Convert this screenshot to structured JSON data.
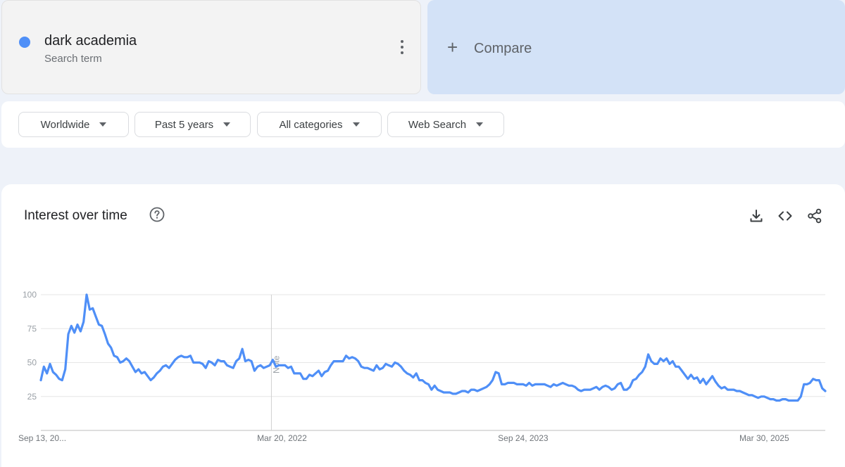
{
  "search_term": {
    "name": "dark academia",
    "subtitle": "Search term",
    "color": "#4f8ff7"
  },
  "compare": {
    "label": "Compare"
  },
  "filters": [
    {
      "label": "Worldwide"
    },
    {
      "label": "Past 5 years"
    },
    {
      "label": "All categories"
    },
    {
      "label": "Web Search"
    }
  ],
  "chart_section": {
    "title": "Interest over time"
  },
  "icons": {
    "help": "help-circle-icon",
    "download": "download-icon",
    "embed": "embed-code-icon",
    "share": "share-icon"
  },
  "chart_data": {
    "type": "line",
    "title": "",
    "xlabel": "",
    "ylabel": "",
    "ylim": [
      0,
      100
    ],
    "yticks": [
      25,
      50,
      75,
      100
    ],
    "x_tick_labels": [
      "Sep 13, 20...",
      "Mar 20, 2022",
      "Sep 24, 2023",
      "Mar 30, 2025"
    ],
    "x_tick_week_index": [
      0,
      79,
      158,
      237
    ],
    "annotation": {
      "label": "Note",
      "week_index": 76
    },
    "grid": true,
    "legend": "none",
    "series": [
      {
        "color": "#4f8ff7",
        "values": [
          37,
          47,
          42,
          49,
          43,
          41,
          38,
          37,
          45,
          71,
          77,
          72,
          78,
          73,
          80,
          100,
          89,
          90,
          84,
          78,
          77,
          71,
          64,
          61,
          55,
          54,
          50,
          51,
          53,
          51,
          47,
          43,
          45,
          42,
          43,
          40,
          37,
          39,
          42,
          44,
          47,
          48,
          46,
          49,
          52,
          54,
          55,
          54,
          54,
          55,
          50,
          50,
          50,
          49,
          46,
          51,
          50,
          48,
          52,
          51,
          51,
          48,
          47,
          46,
          51,
          53,
          60,
          51,
          52,
          51,
          44,
          47,
          48,
          46,
          47,
          48,
          52,
          47,
          48,
          48,
          48,
          46,
          47,
          42,
          42,
          42,
          38,
          38,
          41,
          40,
          42,
          44,
          40,
          43,
          44,
          48,
          51,
          51,
          51,
          51,
          55,
          53,
          54,
          53,
          51,
          47,
          46,
          46,
          45,
          44,
          48,
          45,
          46,
          49,
          48,
          47,
          50,
          49,
          47,
          44,
          42,
          41,
          39,
          42,
          37,
          37,
          35,
          34,
          30,
          33,
          30,
          29,
          28,
          28,
          28,
          27,
          27,
          28,
          29,
          29,
          28,
          30,
          30,
          29,
          30,
          31,
          32,
          34,
          37,
          43,
          42,
          34,
          34,
          35,
          35,
          35,
          34,
          34,
          34,
          33,
          35,
          33,
          34,
          34,
          34,
          34,
          33,
          32,
          34,
          33,
          34,
          35,
          34,
          33,
          33,
          32,
          30,
          29,
          30,
          30,
          30,
          31,
          32,
          30,
          32,
          33,
          32,
          30,
          31,
          34,
          35,
          30,
          30,
          32,
          37,
          38,
          41,
          43,
          47,
          56,
          51,
          49,
          49,
          53,
          51,
          53,
          49,
          51,
          47,
          47,
          44,
          41,
          38,
          41,
          38,
          39,
          35,
          38,
          34,
          37,
          40,
          36,
          33,
          31,
          32,
          30,
          30,
          30,
          29,
          29,
          28,
          27,
          26,
          26,
          25,
          24,
          25,
          25,
          24,
          23,
          23,
          22,
          22,
          23,
          23,
          22,
          22,
          22,
          22,
          25,
          34,
          34,
          35,
          38,
          37,
          37,
          31,
          29
        ]
      }
    ]
  }
}
